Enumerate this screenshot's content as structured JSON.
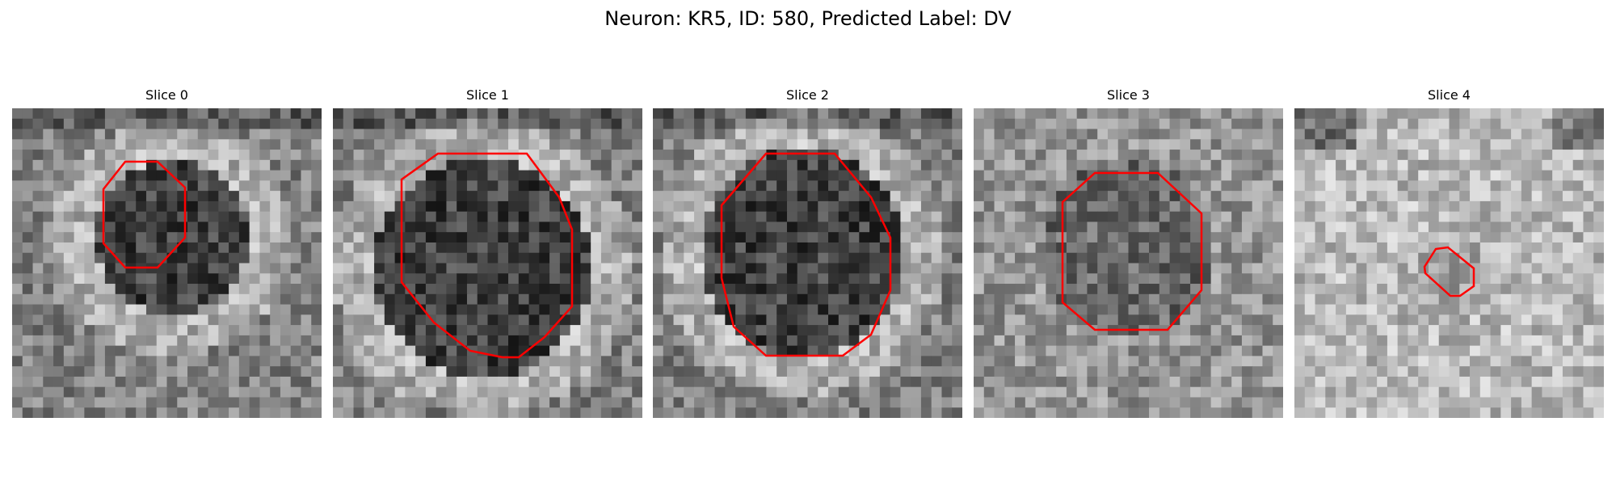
{
  "figure": {
    "title": "Neuron: KR5, ID: 580, Predicted Label: DV"
  },
  "panels": [
    {
      "title": "Slice 0",
      "seed": 11,
      "roi": "octagon-large",
      "roi_color": "#ff0000"
    },
    {
      "title": "Slice 1",
      "seed": 23,
      "roi": "octagon-xlarge",
      "roi_color": "#ff0000"
    },
    {
      "title": "Slice 2",
      "seed": 37,
      "roi": "octagon-xlarge",
      "roi_color": "#ff0000"
    },
    {
      "title": "Slice 3",
      "seed": 41,
      "roi": "octagon-large",
      "roi_color": "#ff0000"
    },
    {
      "title": "Slice 4",
      "seed": 53,
      "roi": "small-blob",
      "roi_color": "#ff0000"
    }
  ]
}
